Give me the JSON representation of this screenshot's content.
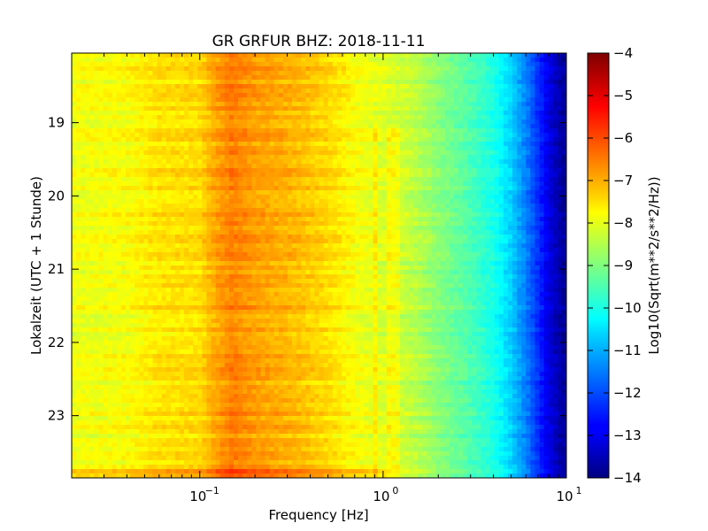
{
  "chart_data": {
    "type": "heatmap",
    "title": "GR GRFUR BHZ: 2018-11-11",
    "xlabel": "Frequency [Hz]",
    "ylabel": "Lokalzeit (UTC + 1 Stunde)",
    "xscale": "log",
    "xlim": [
      0.02,
      10
    ],
    "ylim": [
      23.85,
      18.05
    ],
    "x_ticks": [
      {
        "value": 0.1,
        "base": "10",
        "exp": "−1"
      },
      {
        "value": 1,
        "base": "10",
        "exp": "0"
      },
      {
        "value": 10,
        "base": "10",
        "exp": "1"
      }
    ],
    "y_ticks": [
      {
        "value": 19,
        "label": "19"
      },
      {
        "value": 20,
        "label": "20"
      },
      {
        "value": 21,
        "label": "21"
      },
      {
        "value": 22,
        "label": "22"
      },
      {
        "value": 23,
        "label": "23"
      }
    ],
    "colorbar": {
      "label": "Log10(Sqrt(m**2/s**2/Hz))",
      "colormap": "jet",
      "range": [
        -14,
        -4
      ],
      "ticks": [
        "−4",
        "−5",
        "−6",
        "−7",
        "−8",
        "−9",
        "−10",
        "−11",
        "−12",
        "−13",
        "−14"
      ]
    },
    "spectrum_profile": {
      "frequency": [
        0.02,
        0.04,
        0.06,
        0.1,
        0.12,
        0.15,
        0.2,
        0.3,
        0.5,
        0.7,
        1,
        1.5,
        2,
        3,
        4,
        5,
        6,
        7,
        8,
        9,
        10
      ],
      "value": [
        -7.9,
        -7.8,
        -7.5,
        -7.4,
        -6.9,
        -6.5,
        -6.8,
        -7.0,
        -7.4,
        -7.8,
        -8.1,
        -8.4,
        -8.9,
        -9.5,
        -10.0,
        -10.7,
        -11.5,
        -12.3,
        -13.0,
        -13.5,
        -13.8
      ]
    },
    "spectral_lines_hz": [
      0.9,
      1.1,
      1.18
    ],
    "grid": false
  },
  "colors": {
    "background": "#ffffff",
    "axes": "#000000"
  }
}
